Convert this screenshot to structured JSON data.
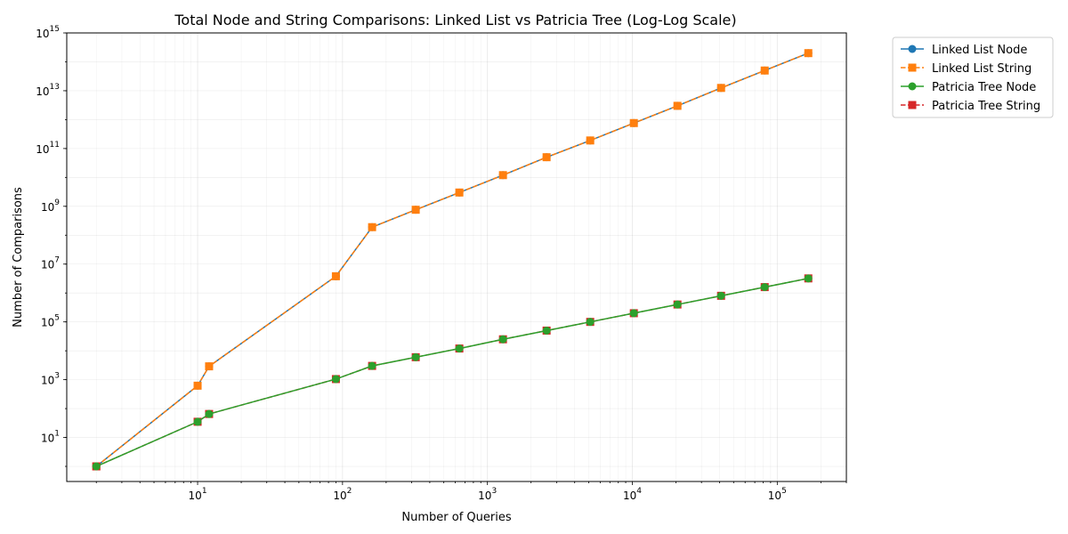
{
  "chart_data": {
    "type": "line",
    "title": "Total Node and String Comparisons: Linked List vs Patricia Tree (Log-Log Scale)",
    "xlabel": "Number of Queries",
    "ylabel": "Number of Comparisons",
    "xscale": "log",
    "yscale": "log",
    "xlim": [
      1.25,
      300000
    ],
    "ylim": [
      0.3,
      1000000000000000.0
    ],
    "x_ticks": [
      {
        "value": 10,
        "base": "10",
        "exp": "1"
      },
      {
        "value": 100,
        "base": "10",
        "exp": "2"
      },
      {
        "value": 1000,
        "base": "10",
        "exp": "3"
      },
      {
        "value": 10000,
        "base": "10",
        "exp": "4"
      },
      {
        "value": 100000,
        "base": "10",
        "exp": "5"
      }
    ],
    "y_ticks": [
      {
        "value": 10,
        "base": "10",
        "exp": "1"
      },
      {
        "value": 1000,
        "base": "10",
        "exp": "3"
      },
      {
        "value": 100000,
        "base": "10",
        "exp": "5"
      },
      {
        "value": 10000000,
        "base": "10",
        "exp": "7"
      },
      {
        "value": 1000000000,
        "base": "10",
        "exp": "9"
      },
      {
        "value": 100000000000,
        "base": "10",
        "exp": "11"
      },
      {
        "value": 10000000000000,
        "base": "10",
        "exp": "13"
      },
      {
        "value": 1000000000000000,
        "base": "10",
        "exp": "15"
      }
    ],
    "grid": true,
    "legend_position": "outside-top-right",
    "x": [
      2,
      10,
      12,
      90,
      160,
      320,
      640,
      1280,
      2560,
      5120,
      10240,
      20480,
      40960,
      81920,
      163840
    ],
    "series": [
      {
        "name": "Linked List Node",
        "color": "#1f77b4",
        "marker": "circle",
        "linestyle": "solid",
        "values": [
          1,
          620,
          2900,
          3800000,
          190000000,
          760000000,
          3000000000,
          12000000000,
          50000000000,
          190000000000,
          760000000000,
          3000000000000,
          12500000000000,
          50000000000000,
          200000000000000
        ]
      },
      {
        "name": "Linked List String",
        "color": "#ff7f0e",
        "marker": "square",
        "linestyle": "dashed",
        "values": [
          1,
          620,
          2900,
          3800000,
          190000000,
          760000000,
          3000000000,
          12000000000,
          50000000000,
          190000000000,
          760000000000,
          3000000000000,
          12500000000000,
          50000000000000,
          200000000000000
        ]
      },
      {
        "name": "Patricia Tree Node",
        "color": "#2ca02c",
        "marker": "circle",
        "linestyle": "solid",
        "values": [
          1,
          35,
          65,
          1050,
          3000,
          6000,
          12000,
          25000,
          50000,
          100000,
          200000,
          400000,
          800000,
          1600000,
          3200000
        ]
      },
      {
        "name": "Patricia Tree String",
        "color": "#d62728",
        "marker": "square",
        "linestyle": "dashed",
        "values": [
          1,
          35,
          65,
          1050,
          3000,
          6000,
          12000,
          25000,
          50000,
          100000,
          200000,
          400000,
          800000,
          1600000,
          3200000
        ]
      }
    ],
    "draw_order": [
      0,
      1,
      3,
      2
    ]
  }
}
